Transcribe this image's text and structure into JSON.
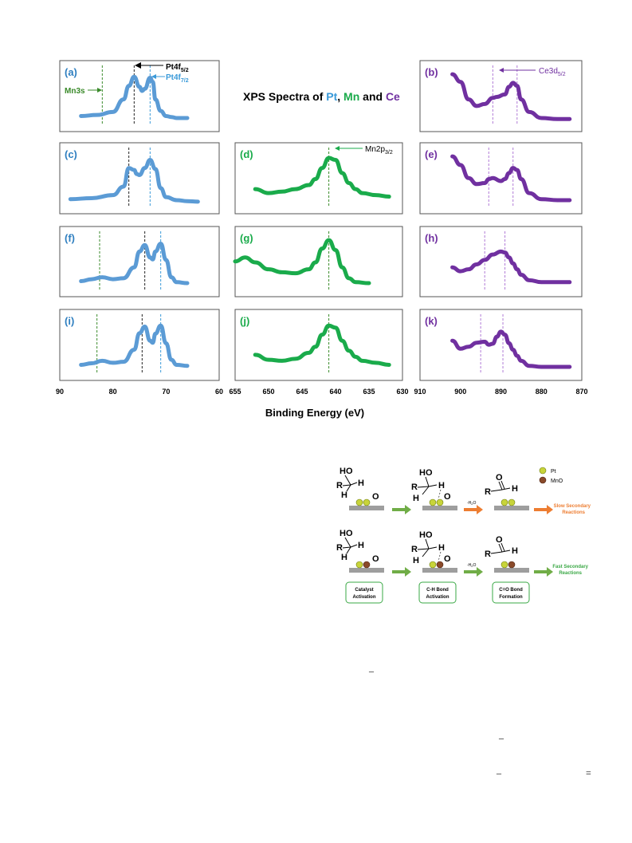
{
  "figure": {
    "title_parts": [
      "XPS Spectra of ",
      "Pt",
      ", ",
      "Mn",
      " and ",
      "Ce"
    ],
    "xlabel": "Binding Energy (eV)",
    "colors": {
      "pt": "#5b9bd5",
      "mn": "#1aab4b",
      "ce": "#7030a0",
      "mn_label": "#3a8a2a"
    },
    "annotations": {
      "pt4f52": "Pt4f",
      "pt4f52_sub": "5/2",
      "pt4f72": "Pt4f",
      "pt4f72_sub": "7/2",
      "mn3s": "Mn3s",
      "mn2p32": "Mn2p",
      "mn2p32_sub": "3/2",
      "ce3d52": "Ce3d",
      "ce3d52_sub": "5/2"
    },
    "axes": {
      "pt": {
        "ticks": [
          "90",
          "80",
          "70",
          "60"
        ],
        "xlim": [
          90,
          60
        ]
      },
      "mn": {
        "ticks": [
          "655",
          "650",
          "645",
          "640",
          "635",
          "630"
        ],
        "xlim": [
          655,
          630
        ]
      },
      "ce": {
        "ticks": [
          "910",
          "900",
          "890",
          "880",
          "870"
        ],
        "xlim": [
          910,
          870
        ]
      }
    }
  },
  "chart_data": [
    {
      "panel": "(a)",
      "type": "line",
      "element": "pt",
      "xlim": [
        90,
        60
      ],
      "x": [
        86,
        83,
        80,
        78,
        77,
        76,
        75,
        74.5,
        74,
        73,
        72.5,
        72,
        71,
        70,
        69,
        68,
        66
      ],
      "y": [
        0.12,
        0.14,
        0.2,
        0.45,
        0.72,
        0.9,
        0.7,
        0.62,
        0.66,
        0.88,
        0.8,
        0.45,
        0.22,
        0.12,
        0.1,
        0.08,
        0.08
      ],
      "markers": [
        {
          "x": 76,
          "style": "black"
        },
        {
          "x": 73,
          "style": "pt"
        },
        {
          "x": 82,
          "style": "mn"
        }
      ]
    },
    {
      "panel": "(c)",
      "type": "line",
      "element": "pt",
      "xlim": [
        90,
        60
      ],
      "x": [
        88,
        84,
        80,
        78,
        77,
        76,
        75.5,
        75,
        74,
        73,
        72,
        71,
        70,
        68,
        66,
        64
      ],
      "y": [
        0.1,
        0.12,
        0.18,
        0.35,
        0.72,
        0.68,
        0.6,
        0.58,
        0.72,
        0.88,
        0.7,
        0.32,
        0.14,
        0.08,
        0.06,
        0.05
      ],
      "markers": [
        {
          "x": 77,
          "style": "black"
        },
        {
          "x": 73,
          "style": "pt"
        }
      ]
    },
    {
      "panel": "(f)",
      "type": "line",
      "element": "pt",
      "xlim": [
        90,
        60
      ],
      "x": [
        86,
        84,
        82,
        80,
        78,
        76,
        75,
        74,
        73,
        72.5,
        72,
        71,
        70,
        69,
        68,
        66
      ],
      "y": [
        0.12,
        0.16,
        0.2,
        0.16,
        0.18,
        0.4,
        0.72,
        0.85,
        0.6,
        0.56,
        0.72,
        0.88,
        0.55,
        0.2,
        0.1,
        0.08
      ],
      "markers": [
        {
          "x": 82.5,
          "style": "mn"
        },
        {
          "x": 74,
          "style": "black"
        },
        {
          "x": 71,
          "style": "pt"
        }
      ]
    },
    {
      "panel": "(i)",
      "type": "line",
      "element": "pt",
      "xlim": [
        90,
        60
      ],
      "x": [
        86,
        84,
        82,
        80,
        78,
        76,
        75,
        74,
        73,
        72.5,
        72,
        71,
        70,
        69,
        68,
        66
      ],
      "y": [
        0.12,
        0.15,
        0.2,
        0.16,
        0.18,
        0.42,
        0.75,
        0.88,
        0.6,
        0.56,
        0.74,
        0.9,
        0.55,
        0.22,
        0.12,
        0.1
      ],
      "markers": [
        {
          "x": 83,
          "style": "mn"
        },
        {
          "x": 74.5,
          "style": "black"
        },
        {
          "x": 71,
          "style": "pt"
        }
      ]
    },
    {
      "panel": "(d)",
      "type": "line",
      "element": "mn",
      "xlim": [
        655,
        630
      ],
      "x": [
        652,
        650,
        648,
        646,
        644,
        643,
        642,
        641,
        640,
        639,
        638,
        637,
        636,
        634,
        632
      ],
      "y": [
        0.3,
        0.22,
        0.25,
        0.3,
        0.38,
        0.5,
        0.72,
        0.92,
        0.88,
        0.62,
        0.42,
        0.3,
        0.22,
        0.18,
        0.15
      ],
      "markers": [
        {
          "x": 641,
          "style": "mn"
        }
      ]
    },
    {
      "panel": "(g)",
      "type": "line",
      "element": "mn",
      "xlim": [
        655,
        630
      ],
      "x": [
        655,
        653.5,
        652,
        650,
        648,
        646,
        644,
        643,
        642,
        641,
        640,
        639,
        638,
        637,
        635
      ],
      "y": [
        0.52,
        0.6,
        0.5,
        0.36,
        0.3,
        0.28,
        0.36,
        0.5,
        0.78,
        0.95,
        0.75,
        0.4,
        0.18,
        0.1,
        0.08
      ],
      "markers": [
        {
          "x": 641,
          "style": "mn"
        }
      ]
    },
    {
      "panel": "(j)",
      "type": "line",
      "element": "mn",
      "xlim": [
        655,
        630
      ],
      "x": [
        652,
        650,
        648,
        646,
        644,
        643,
        642,
        641,
        640,
        639,
        638,
        637,
        636,
        634,
        632
      ],
      "y": [
        0.32,
        0.22,
        0.2,
        0.24,
        0.36,
        0.48,
        0.72,
        0.9,
        0.86,
        0.6,
        0.4,
        0.28,
        0.2,
        0.16,
        0.12
      ],
      "markers": [
        {
          "x": 641,
          "style": "mn"
        }
      ]
    },
    {
      "panel": "(b)",
      "type": "line",
      "element": "ce",
      "xlim": [
        910,
        870
      ],
      "x": [
        902,
        900,
        898,
        896,
        894,
        892,
        891,
        889,
        888,
        887,
        886,
        885,
        883,
        880,
        876,
        873
      ],
      "y": [
        0.95,
        0.8,
        0.45,
        0.32,
        0.36,
        0.48,
        0.5,
        0.55,
        0.7,
        0.78,
        0.72,
        0.45,
        0.2,
        0.08,
        0.06,
        0.06
      ],
      "markers": [
        {
          "x": 892,
          "style": "ce"
        },
        {
          "x": 886,
          "style": "ce"
        }
      ]
    },
    {
      "panel": "(e)",
      "type": "line",
      "element": "ce",
      "xlim": [
        910,
        870
      ],
      "x": [
        902,
        900,
        898,
        896,
        894,
        893,
        892,
        890,
        889,
        888,
        887,
        886,
        885,
        883,
        880,
        876,
        873
      ],
      "y": [
        0.95,
        0.78,
        0.52,
        0.4,
        0.42,
        0.5,
        0.52,
        0.46,
        0.5,
        0.62,
        0.72,
        0.68,
        0.5,
        0.22,
        0.1,
        0.08,
        0.08
      ],
      "markers": [
        {
          "x": 893,
          "style": "ce"
        },
        {
          "x": 887,
          "style": "ce"
        }
      ]
    },
    {
      "panel": "(h)",
      "type": "line",
      "element": "ce",
      "xlim": [
        910,
        870
      ],
      "x": [
        902,
        900,
        898,
        896,
        894,
        892,
        890,
        889,
        888,
        887,
        886,
        885,
        883,
        880,
        876,
        873
      ],
      "y": [
        0.4,
        0.32,
        0.36,
        0.46,
        0.55,
        0.66,
        0.72,
        0.7,
        0.6,
        0.48,
        0.36,
        0.25,
        0.14,
        0.1,
        0.1,
        0.1
      ],
      "markers": [
        {
          "x": 894,
          "style": "ce"
        },
        {
          "x": 889,
          "style": "ce"
        }
      ]
    },
    {
      "panel": "(k)",
      "type": "line",
      "element": "ce",
      "xlim": [
        910,
        870
      ],
      "x": [
        902,
        900,
        898,
        896,
        894,
        893,
        892,
        891,
        890,
        889,
        888,
        887,
        886,
        885,
        883,
        880,
        876,
        873
      ],
      "y": [
        0.6,
        0.44,
        0.48,
        0.56,
        0.58,
        0.52,
        0.54,
        0.68,
        0.78,
        0.72,
        0.55,
        0.42,
        0.3,
        0.2,
        0.1,
        0.08,
        0.08,
        0.08
      ],
      "markers": [
        {
          "x": 895,
          "style": "ce"
        },
        {
          "x": 889.5,
          "style": "ce"
        }
      ]
    }
  ],
  "scheme": {
    "legend": {
      "pt": "Pt",
      "mno": "MnO"
    },
    "labels": {
      "ho": "HO",
      "r": "R",
      "h": "H",
      "o": "O",
      "minus_h2o": "-H",
      "h2o_sub": "2",
      "h2o_o": "O"
    },
    "slow": [
      "Slow Secondary",
      "Reactions"
    ],
    "fast": [
      "Fast Secondary",
      "Reactions"
    ],
    "boxes": [
      [
        "Catalyst",
        "Activation"
      ],
      [
        "C-H Bond",
        "Activation"
      ],
      [
        "C=O Bond",
        "Formation"
      ]
    ],
    "colors": {
      "pt_ball": "#c8d43a",
      "mno_ball": "#8a4a2a",
      "green_arrow": "#70ad47",
      "orange_arrow": "#ed7d31",
      "slow_text": "#ed7d31",
      "fast_text": "#3aa845",
      "box_border": "#3aa845"
    }
  },
  "stray_marks": [
    "–",
    "–",
    "–",
    "="
  ]
}
